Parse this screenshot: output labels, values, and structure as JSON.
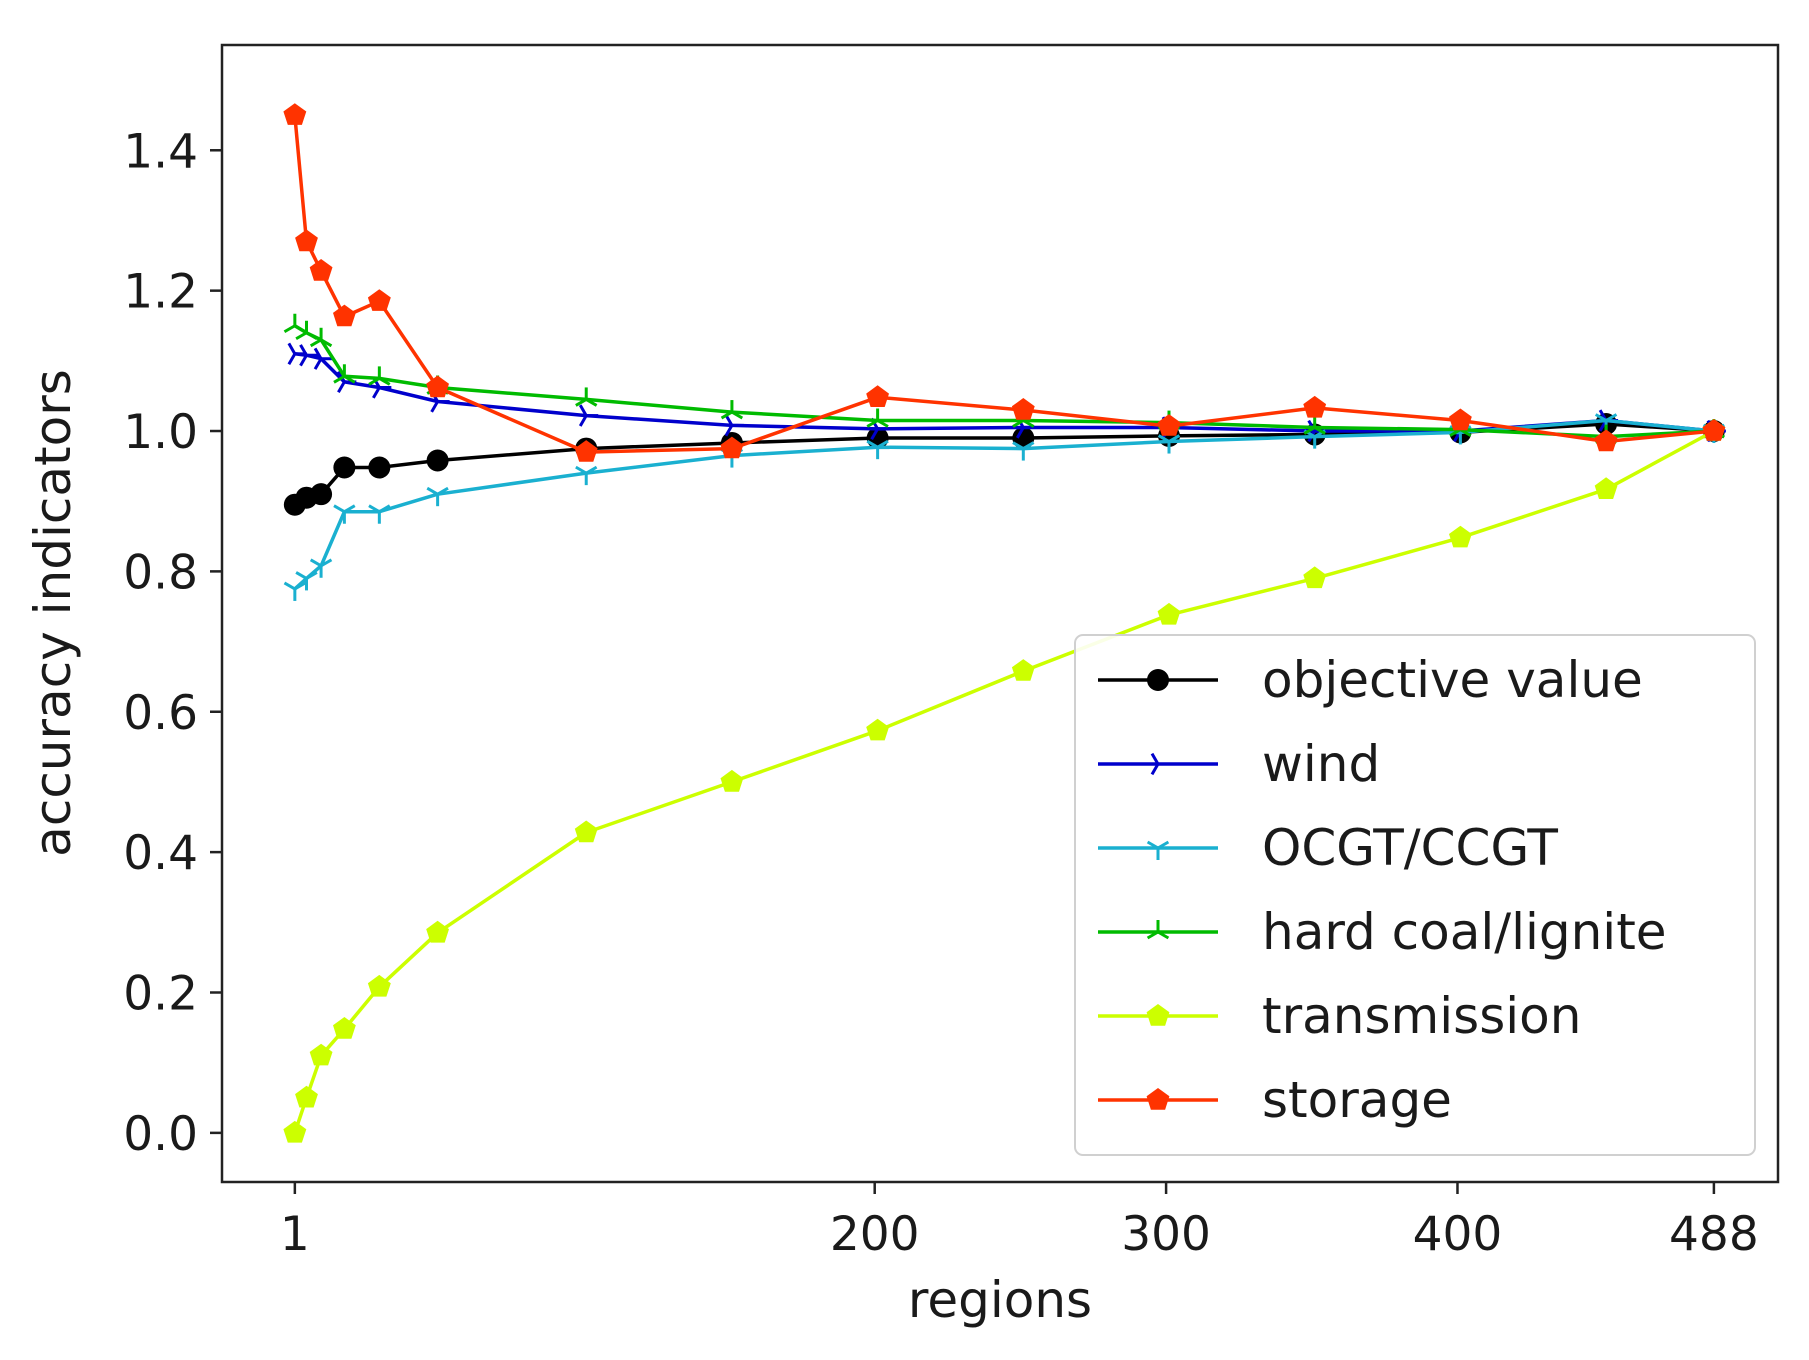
{
  "chart_data": {
    "type": "line",
    "title": "",
    "xlabel": "regions",
    "ylabel": "accuracy indicators",
    "xlim": [
      -24,
      510
    ],
    "ylim": [
      -0.07,
      1.55
    ],
    "xticks": [
      1,
      200,
      300,
      400,
      488
    ],
    "xtick_labels": [
      "1",
      "200",
      "300",
      "400",
      "488"
    ],
    "yticks": [
      0.0,
      0.2,
      0.4,
      0.6,
      0.8,
      1.0,
      1.2,
      1.4
    ],
    "ytick_labels": [
      "0.0",
      "0.2",
      "0.4",
      "0.6",
      "0.8",
      "1.0",
      "1.2",
      "1.4"
    ],
    "grid": false,
    "legend_position": "lower-right",
    "x": [
      1,
      5,
      10,
      18,
      30,
      50,
      101,
      151,
      201,
      251,
      301,
      351,
      401,
      451,
      488
    ],
    "series": [
      {
        "name": "objective value",
        "color": "#000000",
        "marker": "circle",
        "values": [
          0.895,
          0.905,
          0.91,
          0.948,
          0.948,
          0.958,
          0.975,
          0.983,
          0.99,
          0.99,
          0.993,
          0.995,
          0.998,
          1.01,
          1.0
        ]
      },
      {
        "name": "wind",
        "color": "#0000cc",
        "marker": "tri_right",
        "values": [
          1.11,
          1.108,
          1.103,
          1.07,
          1.062,
          1.042,
          1.022,
          1.008,
          1.003,
          1.005,
          1.005,
          1.0,
          1.0,
          1.015,
          1.0
        ]
      },
      {
        "name": "OCGT/CCGT",
        "color": "#1ab0d0",
        "marker": "tri_down",
        "values": [
          0.775,
          0.79,
          0.808,
          0.885,
          0.885,
          0.91,
          0.94,
          0.965,
          0.977,
          0.975,
          0.985,
          0.992,
          0.998,
          1.015,
          1.0
        ]
      },
      {
        "name": "hard coal/lignite",
        "color": "#00bb00",
        "marker": "tri_up",
        "values": [
          1.15,
          1.14,
          1.13,
          1.078,
          1.075,
          1.062,
          1.045,
          1.027,
          1.015,
          1.015,
          1.012,
          1.005,
          1.002,
          0.992,
          1.0
        ]
      },
      {
        "name": "transmission",
        "color": "#ccff00",
        "marker": "pentagon",
        "values": [
          0.0,
          0.05,
          0.11,
          0.148,
          0.208,
          0.285,
          0.428,
          0.5,
          0.573,
          0.658,
          0.738,
          0.79,
          0.848,
          0.917,
          1.0
        ]
      },
      {
        "name": "storage",
        "color": "#ff3300",
        "marker": "pentagon",
        "values": [
          1.45,
          1.27,
          1.228,
          1.163,
          1.185,
          1.062,
          0.97,
          0.975,
          1.048,
          1.03,
          1.007,
          1.033,
          1.015,
          0.985,
          1.0
        ]
      }
    ]
  }
}
